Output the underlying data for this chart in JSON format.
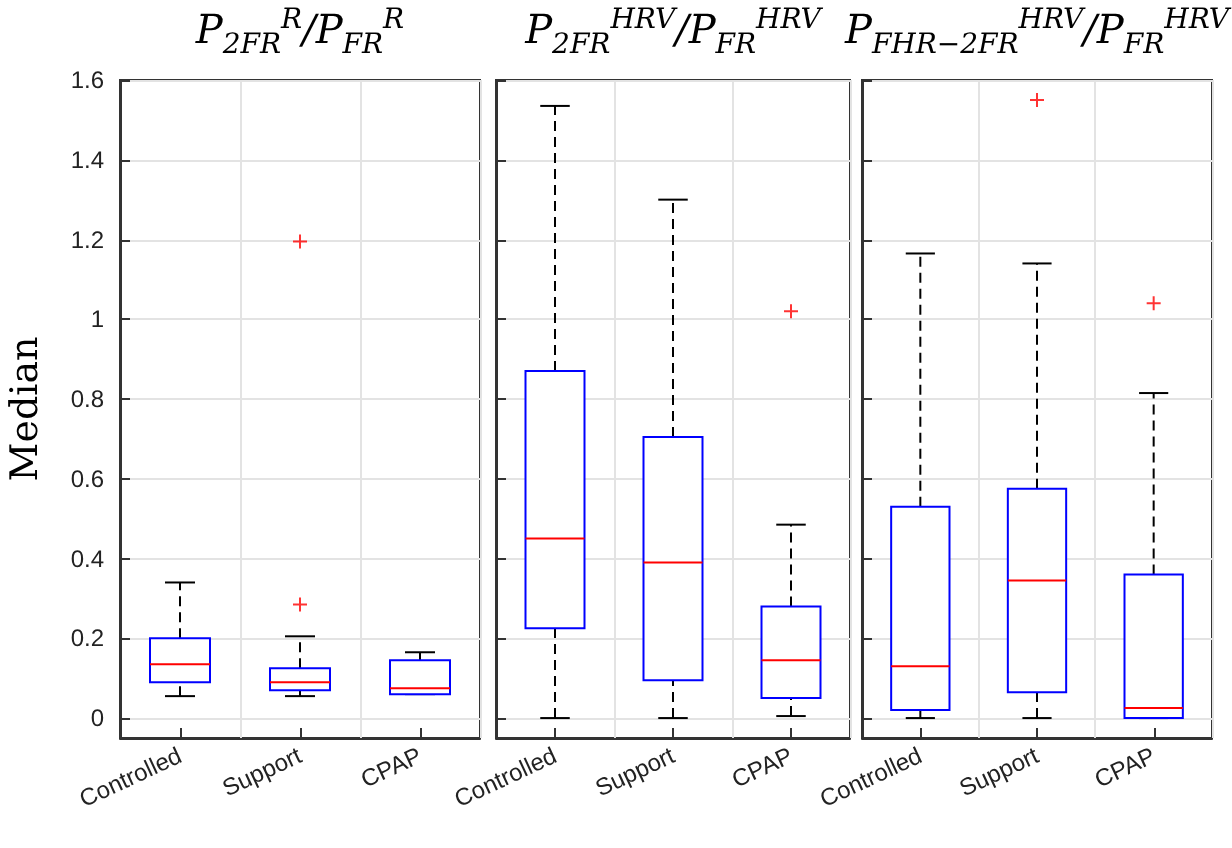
{
  "chart_data": [
    {
      "type": "box",
      "title": "P$_{2FR}$$^{R}$/P$_{FR}$$^{R}$",
      "ylabel": "Median",
      "categories": [
        "Controlled",
        "Support",
        "CPAP"
      ],
      "color": "#0000ff",
      "ylim": [
        -0.05,
        1.6
      ],
      "yticks": [
        0,
        0.2,
        0.4,
        0.6,
        0.8,
        1,
        1.2,
        1.4,
        1.6
      ],
      "grid": true,
      "boxes": [
        {
          "low": 0.055,
          "q1": 0.09,
          "median": 0.135,
          "q3": 0.2,
          "high": 0.34
        },
        {
          "low": 0.055,
          "q1": 0.07,
          "median": 0.09,
          "q3": 0.125,
          "high": 0.205,
          "outliers": [
            0.285,
            1.195
          ]
        },
        {
          "low": 0.06,
          "q1": 0.06,
          "median": 0.075,
          "q3": 0.145,
          "high": 0.165
        }
      ]
    },
    {
      "type": "box",
      "title": "P$_{2FR}$$^{HRV}$/P$_{FR}$$^{HRV}$",
      "categories": [
        "Controlled",
        "Support",
        "CPAP"
      ],
      "color": "#0000ff",
      "ylim": [
        -0.05,
        1.6
      ],
      "yticks": [
        0,
        0.2,
        0.4,
        0.6,
        0.8,
        1,
        1.2,
        1.4,
        1.6
      ],
      "grid": true,
      "tick_labels": "x",
      "boxes": [
        {
          "low": 0,
          "q1": 0.225,
          "median": 0.45,
          "q3": 0.87,
          "high": 1.535
        },
        {
          "low": 0,
          "q1": 0.095,
          "median": 0.39,
          "q3": 0.705,
          "high": 1.3
        },
        {
          "low": 0.005,
          "q1": 0.05,
          "median": 0.145,
          "q3": 0.28,
          "high": 0.485,
          "outliers": [
            1.02
          ]
        }
      ]
    },
    {
      "type": "box",
      "title": "P$_{FHR−2FR}$$^{HRV}$/P$_{FR}$$^{HRV}$",
      "categories": [
        "Controlled",
        "Support",
        "CPAP"
      ],
      "color": "#0000ff",
      "ylim": [
        -0.05,
        1.6
      ],
      "yticks": [
        0,
        0.2,
        0.4,
        0.6,
        0.8,
        1,
        1.2,
        1.4,
        1.6
      ],
      "grid": true,
      "tick_labels": "x",
      "boxes": [
        {
          "low": 0,
          "q1": 0.02,
          "median": 0.13,
          "q3": 0.53,
          "high": 1.165
        },
        {
          "low": 0,
          "q1": 0.065,
          "median": 0.345,
          "q3": 0.575,
          "high": 1.14,
          "outliers": [
            1.55
          ]
        },
        {
          "low": 0,
          "q1": 0,
          "median": 0.025,
          "q3": 0.36,
          "high": 0.815,
          "outliers": [
            1.04
          ]
        }
      ]
    }
  ]
}
